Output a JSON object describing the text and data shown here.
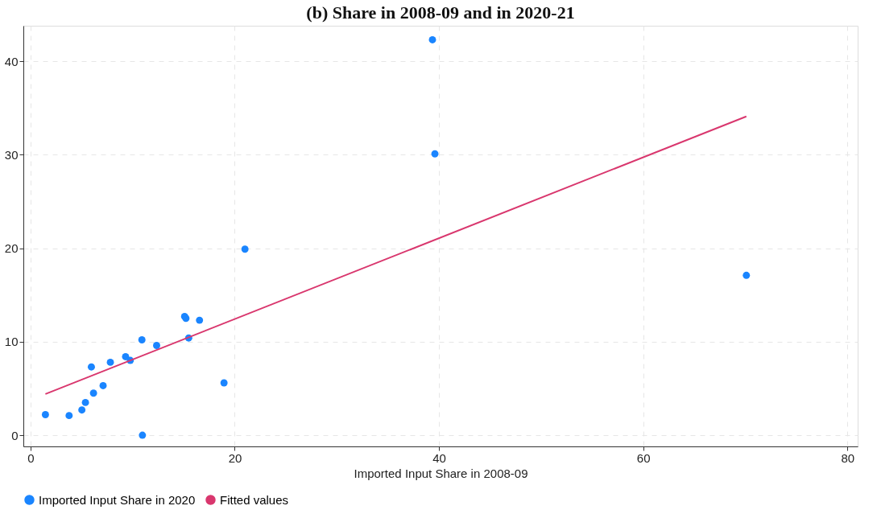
{
  "chart_data": {
    "type": "scatter",
    "title": "(b) Share in 2008-09 and in 2020-21",
    "xlabel": "Imported Input Share in 2008-09",
    "xlim": [
      -0.7,
      81
    ],
    "xticks": [
      0,
      20,
      40,
      60,
      80
    ],
    "ylim": [
      -1.2,
      43.8
    ],
    "yticks": [
      0,
      10,
      20,
      30,
      40
    ],
    "grid": true,
    "legend": "bottom",
    "series": [
      {
        "name": "Imported Input Share in 2020",
        "marker": "circle",
        "color": "#1a85ff",
        "x": [
          1.46,
          3.78,
          5.03,
          5.38,
          6.17,
          5.96,
          7.11,
          7.82,
          9.31,
          9.77,
          10.91,
          10.96,
          12.35,
          15.09,
          15.22,
          16.55,
          15.49,
          18.95,
          21.0,
          39.36,
          39.6,
          70.1
        ],
        "values": [
          2.2,
          2.1,
          2.7,
          3.5,
          4.5,
          7.3,
          5.3,
          7.8,
          8.4,
          8.0,
          10.2,
          0.0,
          9.6,
          12.7,
          12.5,
          12.3,
          10.4,
          5.6,
          19.9,
          42.3,
          30.1,
          17.1
        ]
      },
      {
        "name": "Fitted values",
        "type": "line",
        "marker": "none",
        "line_style": "solid",
        "color": "#d9376e",
        "x": [
          1.46,
          70.1
        ],
        "values": [
          4.4,
          34.1
        ]
      }
    ]
  }
}
